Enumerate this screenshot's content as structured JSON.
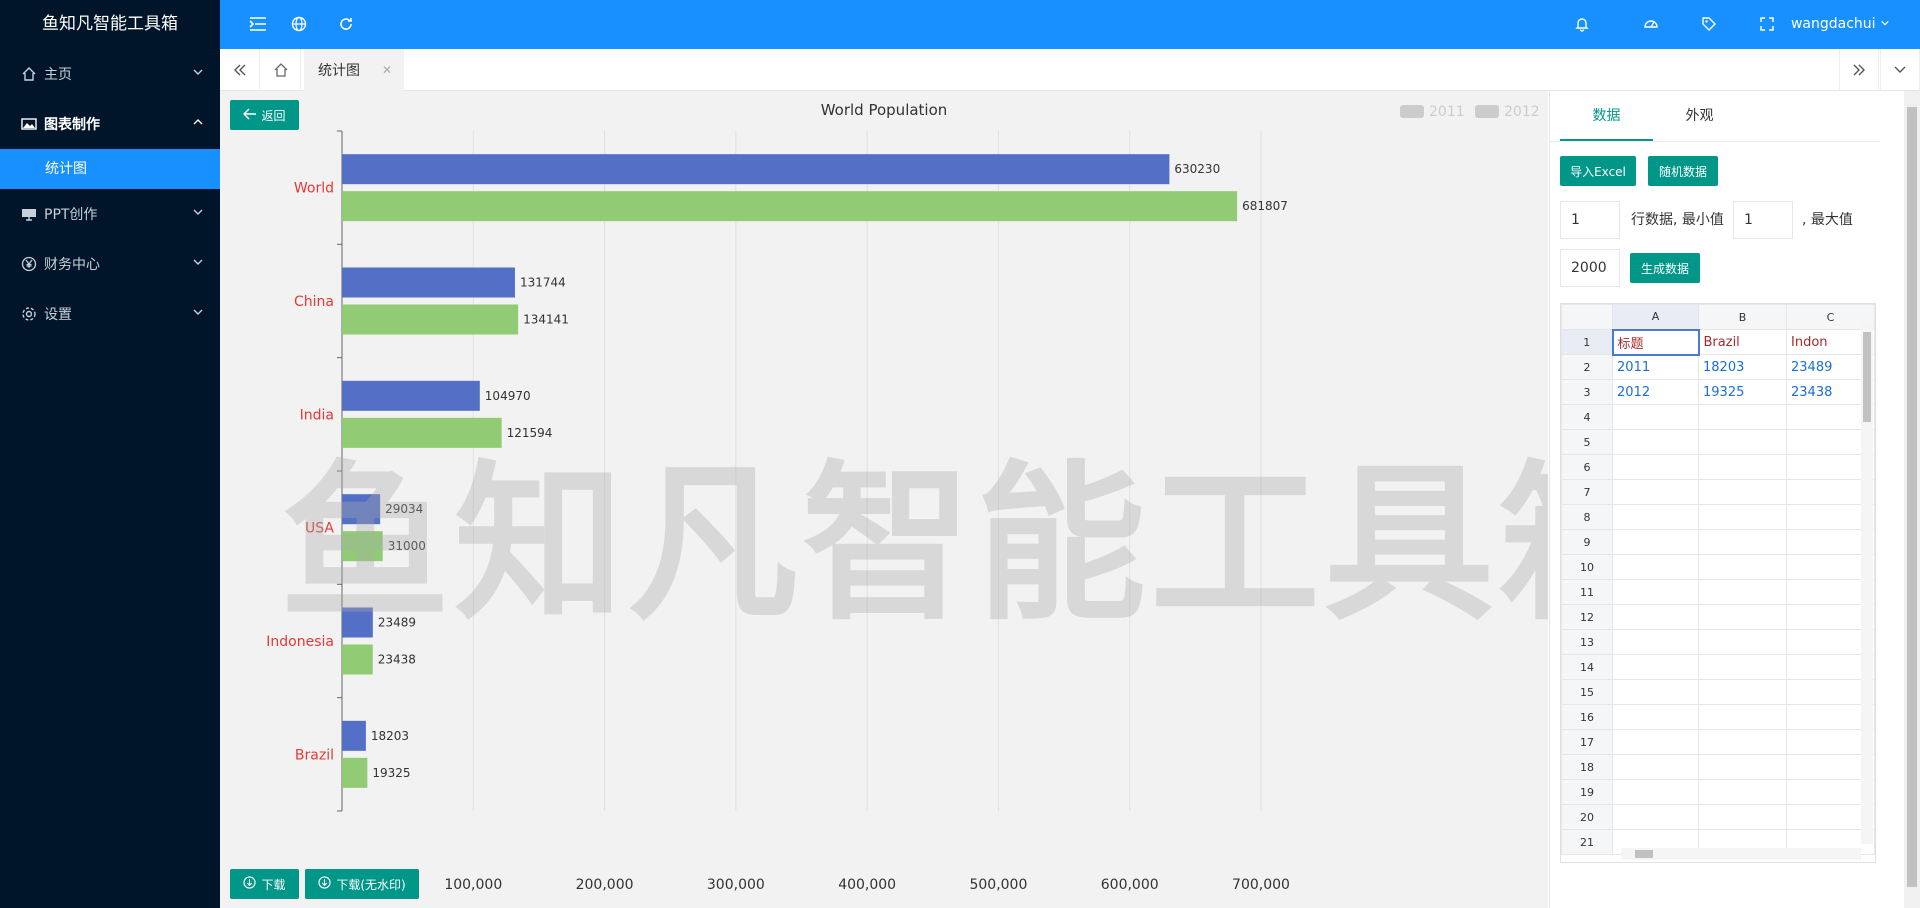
{
  "app": {
    "title": "鱼知凡智能工具箱",
    "user": "wangdachui"
  },
  "sidebar": {
    "items": [
      {
        "label": "主页",
        "icon": "home-icon"
      },
      {
        "label": "图表制作",
        "icon": "image-icon",
        "open": true
      },
      {
        "label": "PPT创作",
        "icon": "presentation-icon"
      },
      {
        "label": "财务中心",
        "icon": "yen-icon"
      },
      {
        "label": "设置",
        "icon": "gear-icon"
      }
    ],
    "sub_item": "统计图"
  },
  "tabs": {
    "active": "统计图"
  },
  "chart_pane": {
    "back_label": "返回",
    "download_label": "下载",
    "download_nowm_label": "下载(无水印)",
    "watermark": "鱼知凡智能工具箱"
  },
  "chart_data": {
    "type": "bar",
    "orientation": "horizontal",
    "title": "World Population",
    "categories": [
      "World",
      "China",
      "India",
      "USA",
      "Indonesia",
      "Brazil"
    ],
    "series": [
      {
        "name": "2011",
        "values": [
          630230,
          131744,
          104970,
          29034,
          23489,
          18203
        ],
        "color": "#5470c6"
      },
      {
        "name": "2012",
        "values": [
          681807,
          134141,
          121594,
          31000,
          23438,
          19325
        ],
        "color": "#91cc75"
      }
    ],
    "xlim": [
      0,
      700000
    ],
    "x_ticks": [
      "100,000",
      "200,000",
      "300,000",
      "400,000",
      "500,000",
      "600,000",
      "700,000"
    ],
    "legend_position": "top-right",
    "category_label_color": "#e53935"
  },
  "right_panel": {
    "tabs": [
      "数据",
      "外观"
    ],
    "import_label": "导入Excel",
    "random_label": "随机数据",
    "rows_value": "1",
    "rows_label": "行数据, 最小值",
    "min_value": "1",
    "max_label": ", 最大值",
    "max_value": "2000",
    "generate_label": "生成数据"
  },
  "sheet": {
    "columns": [
      "A",
      "B",
      "C"
    ],
    "rows": [
      [
        "标题",
        "Brazil",
        "Indon"
      ],
      [
        "2011",
        "18203",
        "23489"
      ],
      [
        "2012",
        "19325",
        "23438"
      ]
    ],
    "row_numbers": [
      "1",
      "2",
      "3",
      "4",
      "5",
      "6",
      "7",
      "8",
      "9",
      "10",
      "11",
      "12",
      "13",
      "14",
      "15",
      "16",
      "17",
      "18",
      "19",
      "20",
      "21"
    ]
  }
}
